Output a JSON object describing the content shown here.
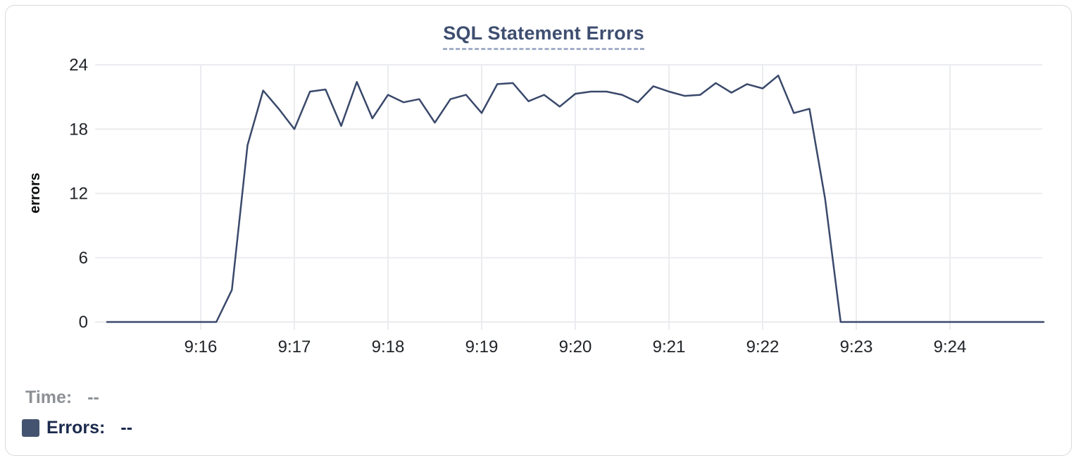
{
  "tooltip": {
    "time_label": "Time:",
    "time_value": "--",
    "errors_label": "Errors:",
    "errors_value": "--"
  },
  "colors": {
    "line": "#3a496b",
    "swatch": "#44536f",
    "title": "#3e4e70",
    "grid": "#ebecef",
    "tick_text": "#212428",
    "time_label_gray": "#8d9095",
    "errors_label_navy": "#1b2a4d",
    "card_border": "#d8dadd"
  },
  "chart_data": {
    "type": "line",
    "title": "SQL Statement Errors",
    "xlabel": "",
    "ylabel": "errors",
    "ylim": [
      0,
      24
    ],
    "y_ticks": [
      0,
      6,
      12,
      18,
      24
    ],
    "x_ticks": [
      "9:16",
      "9:17",
      "9:18",
      "9:19",
      "9:20",
      "9:21",
      "9:22",
      "9:23",
      "9:24"
    ],
    "x_range": [
      "9:15:00",
      "9:25:00"
    ],
    "grid": true,
    "legend_position": "bottom-left",
    "series": [
      {
        "name": "Errors",
        "color": "#3a496b",
        "points": [
          [
            "9:15:00",
            0
          ],
          [
            "9:15:10",
            0
          ],
          [
            "9:15:20",
            0
          ],
          [
            "9:15:30",
            0
          ],
          [
            "9:15:40",
            0
          ],
          [
            "9:15:50",
            0
          ],
          [
            "9:16:00",
            0
          ],
          [
            "9:16:10",
            0
          ],
          [
            "9:16:20",
            3
          ],
          [
            "9:16:30",
            16.5
          ],
          [
            "9:16:40",
            21.6
          ],
          [
            "9:16:50",
            19.9
          ],
          [
            "9:17:00",
            18
          ],
          [
            "9:17:10",
            21.5
          ],
          [
            "9:17:20",
            21.7
          ],
          [
            "9:17:30",
            18.3
          ],
          [
            "9:17:40",
            22.4
          ],
          [
            "9:17:50",
            19
          ],
          [
            "9:18:00",
            21.2
          ],
          [
            "9:18:10",
            20.5
          ],
          [
            "9:18:20",
            20.8
          ],
          [
            "9:18:30",
            18.6
          ],
          [
            "9:18:40",
            20.8
          ],
          [
            "9:18:50",
            21.2
          ],
          [
            "9:19:00",
            19.5
          ],
          [
            "9:19:10",
            22.2
          ],
          [
            "9:19:20",
            22.3
          ],
          [
            "9:19:30",
            20.6
          ],
          [
            "9:19:40",
            21.2
          ],
          [
            "9:19:50",
            20.1
          ],
          [
            "9:20:00",
            21.3
          ],
          [
            "9:20:10",
            21.5
          ],
          [
            "9:20:20",
            21.5
          ],
          [
            "9:20:30",
            21.2
          ],
          [
            "9:20:40",
            20.5
          ],
          [
            "9:20:50",
            22
          ],
          [
            "9:21:00",
            21.5
          ],
          [
            "9:21:10",
            21.1
          ],
          [
            "9:21:20",
            21.2
          ],
          [
            "9:21:30",
            22.3
          ],
          [
            "9:21:40",
            21.4
          ],
          [
            "9:21:50",
            22.2
          ],
          [
            "9:22:00",
            21.8
          ],
          [
            "9:22:10",
            23
          ],
          [
            "9:22:20",
            19.5
          ],
          [
            "9:22:30",
            19.9
          ],
          [
            "9:22:40",
            11.5
          ],
          [
            "9:22:50",
            0
          ],
          [
            "9:23:00",
            0
          ],
          [
            "9:23:10",
            0
          ],
          [
            "9:23:20",
            0
          ],
          [
            "9:23:30",
            0
          ],
          [
            "9:23:40",
            0
          ],
          [
            "9:23:50",
            0
          ],
          [
            "9:24:00",
            0
          ],
          [
            "9:24:10",
            0
          ],
          [
            "9:24:20",
            0
          ],
          [
            "9:24:30",
            0
          ],
          [
            "9:24:40",
            0
          ],
          [
            "9:24:50",
            0
          ],
          [
            "9:25:00",
            0
          ]
        ]
      }
    ]
  }
}
